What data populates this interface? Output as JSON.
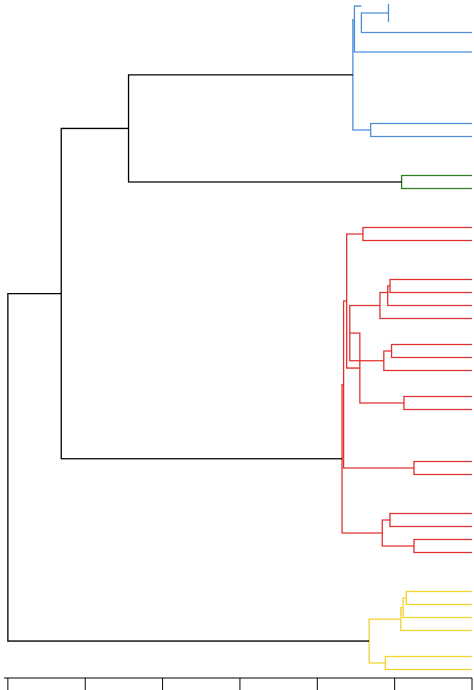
{
  "chart_data": {
    "type": "dendrogram",
    "orientation": "left",
    "x_ticks": [
      0,
      1,
      2,
      3,
      4,
      5,
      6
    ],
    "xlim": [
      0,
      6.05
    ],
    "colors": {
      "blue": "#4a90d9",
      "green": "#2e7d1e",
      "red": "#e03030",
      "yellow": "#f2d22e",
      "link": "#000000",
      "axis": "#000000"
    },
    "links": [
      {
        "color": "blue",
        "y1": 3,
        "h1": 1.08,
        "y2": 17,
        "h2": 1.08,
        "height": 1.08
      },
      {
        "color": "blue",
        "y1": 10,
        "h1": 1.08,
        "y2": 25,
        "h2": 0,
        "height": 1.43
      },
      {
        "color": "blue",
        "y1": 4.66,
        "h1": 1.43,
        "y2": 40,
        "h2": 0,
        "height": 1.52
      },
      {
        "color": "blue",
        "y1": 95,
        "h1": 0,
        "y2": 105,
        "h2": 0,
        "height": 1.31
      },
      {
        "color": "blue",
        "y1": 15.16,
        "h1": 1.52,
        "y2": 100,
        "h2": 1.31,
        "height": 1.54
      },
      {
        "color": "green",
        "y1": 135,
        "h1": 0,
        "y2": 145,
        "h2": 0,
        "height": 0.91
      },
      {
        "color": "link",
        "y1": 57.58,
        "h1": 1.54,
        "y2": 140,
        "h2": 0.91,
        "height": 4.44
      },
      {
        "color": "red",
        "y1": 175,
        "h1": 0,
        "y2": 185,
        "h2": 0,
        "height": 1.41
      },
      {
        "color": "red",
        "y1": 215,
        "h1": 0,
        "y2": 225,
        "h2": 0,
        "height": 1.06
      },
      {
        "color": "red",
        "y1": 220,
        "h1": 1.06,
        "y2": 235,
        "h2": 0,
        "height": 1.09
      },
      {
        "color": "red",
        "y1": 225,
        "h1": 1.09,
        "y2": 245,
        "h2": 0,
        "height": 1.19
      },
      {
        "color": "red",
        "y1": 265,
        "h1": 0,
        "y2": 275,
        "h2": 0,
        "height": 1.04
      },
      {
        "color": "red",
        "y1": 270,
        "h1": 1.04,
        "y2": 285,
        "h2": 0,
        "height": 1.14
      },
      {
        "color": "red",
        "y1": 235,
        "h1": 1.19,
        "y2": 277.5,
        "h2": 1.14,
        "height": 1.58
      },
      {
        "color": "red",
        "y1": 305,
        "h1": 0,
        "y2": 315,
        "h2": 0,
        "height": 0.88
      },
      {
        "color": "red",
        "y1": 256.25,
        "h1": 1.58,
        "y2": 310,
        "h2": 0.88,
        "height": 1.45
      },
      {
        "color": "red",
        "y1": 180,
        "h1": 1.41,
        "y2": 283.13,
        "h2": 1.45,
        "height": 1.62
      },
      {
        "color": "red",
        "y1": 355,
        "h1": 0,
        "y2": 365,
        "h2": 0,
        "height": 0.75
      },
      {
        "color": "red",
        "y1": 231.56,
        "h1": 1.62,
        "y2": 360,
        "h2": 0.75,
        "height": 1.66
      },
      {
        "color": "red",
        "y1": 395,
        "h1": 0,
        "y2": 405,
        "h2": 0,
        "height": 1.06
      },
      {
        "color": "red",
        "y1": 415,
        "h1": 0,
        "y2": 425,
        "h2": 0,
        "height": 0.75
      },
      {
        "color": "red",
        "y1": 400,
        "h1": 1.06,
        "y2": 420,
        "h2": 0.75,
        "height": 1.16
      },
      {
        "color": "red",
        "y1": 295.78,
        "h1": 1.66,
        "y2": 410,
        "h2": 1.16,
        "height": 1.68
      },
      {
        "color": "link",
        "y1": 98.79,
        "h1": 4.44,
        "y2": 352.89,
        "h2": 1.68,
        "height": 5.31
      },
      {
        "color": "yellow",
        "y1": 455,
        "h1": 0,
        "y2": 465,
        "h2": 0,
        "height": 0.85
      },
      {
        "color": "yellow",
        "y1": 460,
        "h1": 0.85,
        "y2": 475,
        "h2": 0,
        "height": 0.89
      },
      {
        "color": "yellow",
        "y1": 467.5,
        "h1": 0.89,
        "y2": 485,
        "h2": 0,
        "height": 0.92
      },
      {
        "color": "yellow",
        "y1": 505,
        "h1": 0,
        "y2": 515,
        "h2": 0,
        "height": 1.12
      },
      {
        "color": "yellow",
        "y1": 476.25,
        "h1": 0.92,
        "y2": 510,
        "h2": 1.12,
        "height": 1.33
      },
      {
        "color": "link",
        "y1": 225.84,
        "h1": 5.31,
        "y2": 493.13,
        "h2": 1.33,
        "height": 6.0
      }
    ]
  }
}
